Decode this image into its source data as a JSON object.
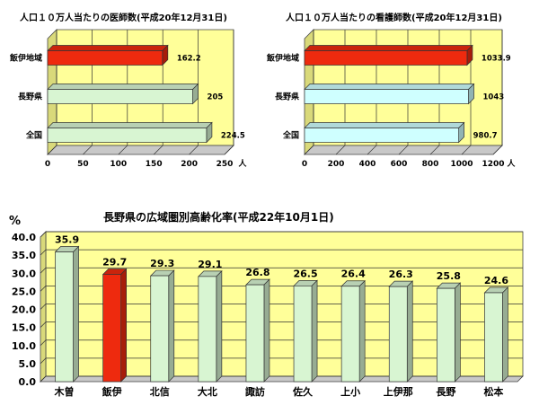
{
  "chart_data": [
    {
      "type": "bar",
      "orientation": "horizontal",
      "title": "人口１０万人当たりの医師数(平成20年12月31日)",
      "categories": [
        "飯伊地域",
        "長野県",
        "全国"
      ],
      "values": [
        162.2,
        205,
        224.5
      ],
      "value_labels": [
        "162.2",
        "205",
        "224.5"
      ],
      "xlim": [
        0,
        250
      ],
      "xticks": [
        "0",
        "50",
        "100",
        "150",
        "200",
        "250"
      ],
      "unit": "人",
      "grid": true,
      "colors": {
        "highlight": "#ee2a0e",
        "normal": "#d8f5d2",
        "wall": "#ffff99"
      }
    },
    {
      "type": "bar",
      "orientation": "horizontal",
      "title": "人口１０万人当たりの看護師数(平成20年12月31日)",
      "categories": [
        "飯伊地域",
        "長野県",
        "全国"
      ],
      "values": [
        1033.9,
        1043,
        980.7
      ],
      "value_labels": [
        "1033.9",
        "1043",
        "980.7"
      ],
      "xlim": [
        0,
        1200
      ],
      "xticks": [
        "0",
        "200",
        "400",
        "600",
        "800",
        "1000",
        "1200"
      ],
      "unit": "人",
      "grid": true,
      "colors": {
        "highlight": "#ee2a0e",
        "normal": "#cfffff",
        "wall": "#ffff99"
      }
    },
    {
      "type": "bar",
      "orientation": "vertical",
      "title": "長野県の広域圏別高齢化率(平成22年10月1日)",
      "ylabel": "%",
      "categories": [
        "木曽",
        "飯伊",
        "北信",
        "大北",
        "諏訪",
        "佐久",
        "上小",
        "上伊那",
        "長野",
        "松本"
      ],
      "values": [
        35.9,
        29.7,
        29.3,
        29.1,
        26.8,
        26.5,
        26.4,
        26.3,
        25.8,
        24.6
      ],
      "value_labels": [
        "35.9",
        "29.7",
        "29.3",
        "29.1",
        "26.8",
        "26.5",
        "26.4",
        "26.3",
        "25.8",
        "24.6"
      ],
      "ylim": [
        0,
        40
      ],
      "yticks": [
        "0.0",
        "5.0",
        "10.0",
        "15.0",
        "20.0",
        "25.0",
        "30.0",
        "35.0",
        "40.0"
      ],
      "highlight_index": 1,
      "grid": true,
      "colors": {
        "highlight": "#ee2a0e",
        "normal": "#d8f5d2",
        "wall": "#ffff99"
      }
    }
  ]
}
